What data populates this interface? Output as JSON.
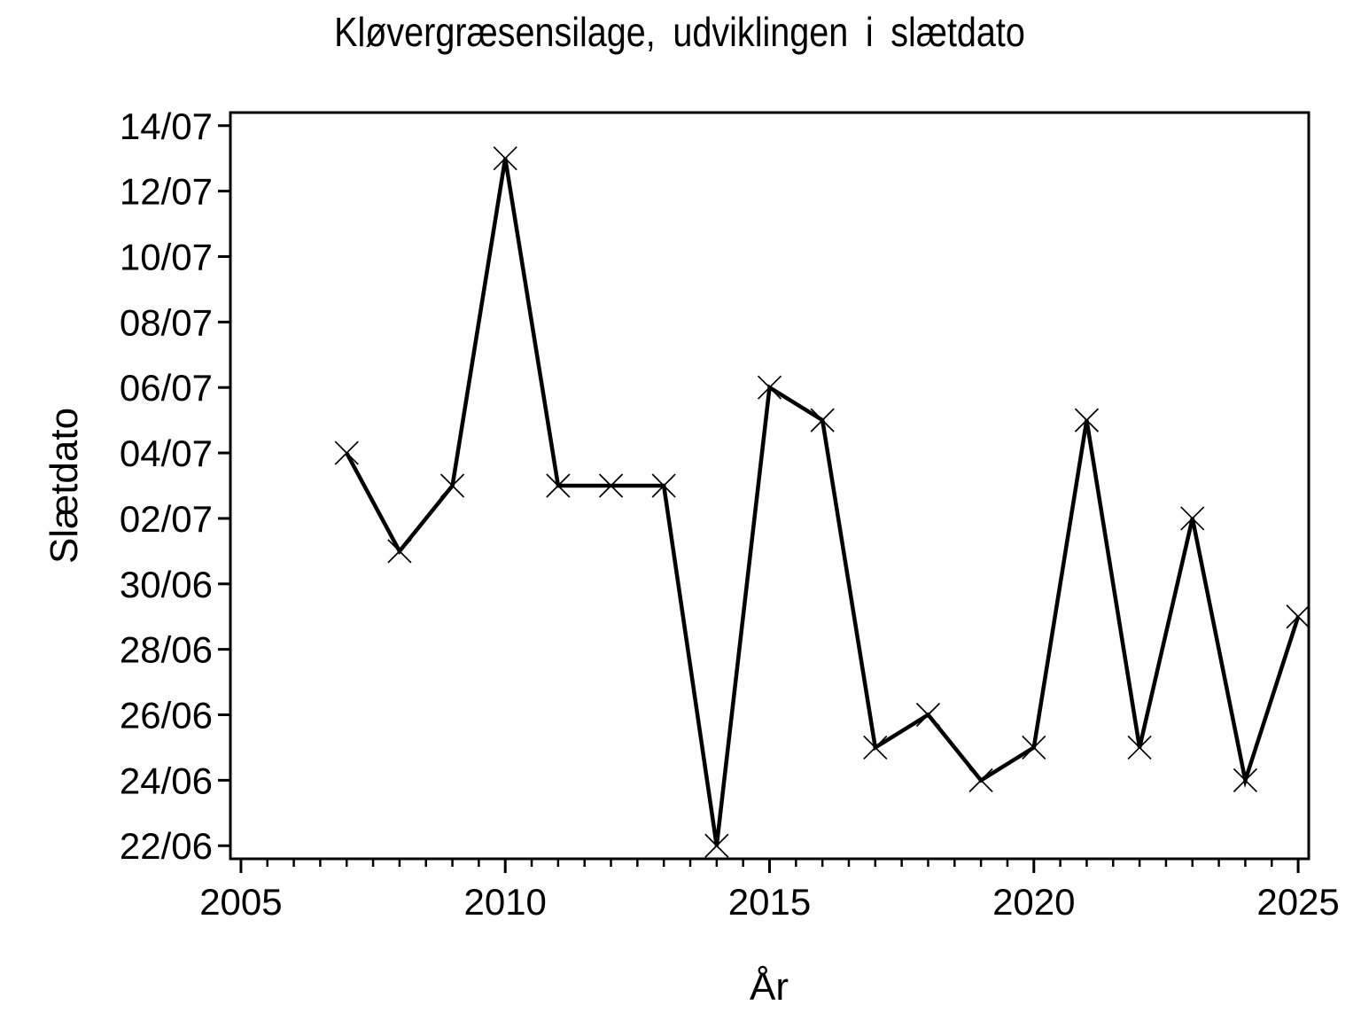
{
  "chart_data": {
    "type": "line",
    "title": "Kløvergræsensilage, udviklingen i slætdato",
    "xlabel": "År",
    "ylabel": "Slætdato",
    "series": [
      {
        "name": "slætdato",
        "x": [
          2007,
          2008,
          2009,
          2010,
          2011,
          2012,
          2013,
          2014,
          2015,
          2016,
          2017,
          2018,
          2019,
          2020,
          2021,
          2022,
          2023,
          2024,
          2025
        ],
        "y_labels": [
          "04/07",
          "01/07",
          "03/07",
          "13/07",
          "03/07",
          "03/07",
          "03/07",
          "22/06",
          "06/07",
          "05/07",
          "25/06",
          "26/06",
          "24/06",
          "25/06",
          "05/07",
          "25/06",
          "02/07",
          "24/06",
          "29/06"
        ],
        "y": [
          12,
          9,
          11,
          21,
          11,
          11,
          11,
          0,
          14,
          13,
          3,
          4,
          2,
          3,
          13,
          3,
          10,
          2,
          7
        ]
      }
    ],
    "y_unit": "days after 22/06",
    "y_ticks": [
      {
        "label": "14/07",
        "value": 22
      },
      {
        "label": "12/07",
        "value": 20
      },
      {
        "label": "10/07",
        "value": 18
      },
      {
        "label": "08/07",
        "value": 16
      },
      {
        "label": "06/07",
        "value": 14
      },
      {
        "label": "04/07",
        "value": 12
      },
      {
        "label": "02/07",
        "value": 10
      },
      {
        "label": "30/06",
        "value": 8
      },
      {
        "label": "28/06",
        "value": 6
      },
      {
        "label": "26/06",
        "value": 4
      },
      {
        "label": "24/06",
        "value": 2
      },
      {
        "label": "22/06",
        "value": 0
      }
    ],
    "x_ticks_major": [
      2005,
      2010,
      2015,
      2020,
      2025
    ],
    "x_tick_minor_step": 0.5,
    "x_range": [
      2004.8,
      2025.2
    ],
    "y_range": [
      -0.4,
      22.4
    ],
    "marker": "x-cross",
    "line_color": "#000000",
    "marker_color": "#000000",
    "background": "#ffffff",
    "grid": false,
    "legend": false
  }
}
